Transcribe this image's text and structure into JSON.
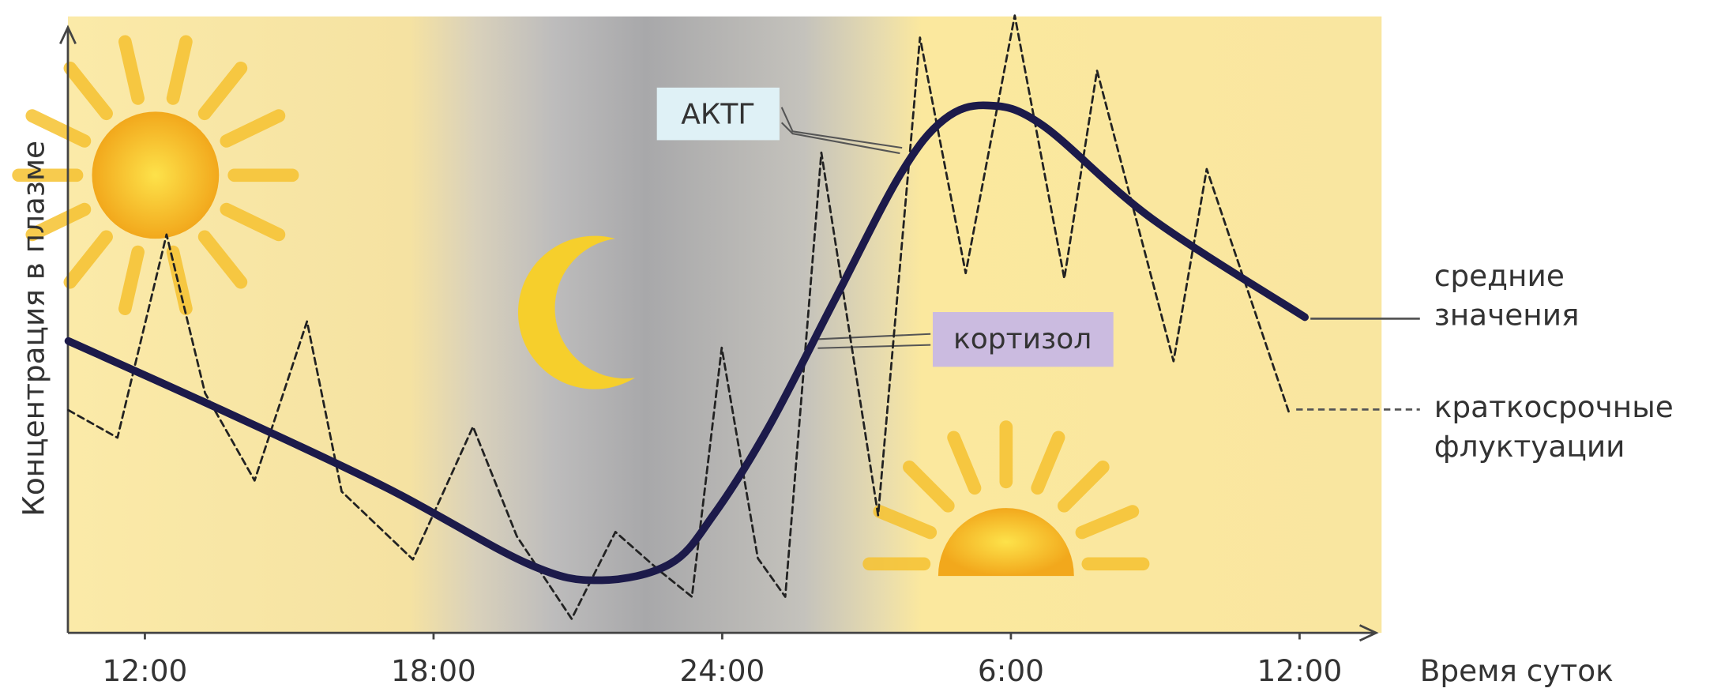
{
  "chart_data": {
    "type": "line",
    "y_label": "Концентрация в плазме",
    "x_label": "Время суток",
    "xlim": [
      10.4,
      37.5
    ],
    "ylim": [
      0,
      102
    ],
    "xticks": [
      {
        "value": 12,
        "label": "12:00"
      },
      {
        "value": 18,
        "label": "18:00"
      },
      {
        "value": 24,
        "label": "24:00"
      },
      {
        "value": 30,
        "label": "6:00"
      },
      {
        "value": 36,
        "label": "12:00"
      }
    ],
    "annotations": [
      "АКТГ",
      "кортизол"
    ],
    "series": [
      {
        "name": "средние значения",
        "color": "#1c1a4a",
        "style": "solid",
        "x": [
          10.41,
          13.6,
          17.0,
          19.96,
          21.44,
          22.92,
          23.83,
          24.97,
          26.33,
          27.7,
          28.61,
          29.52,
          30.65,
          32.93,
          36.11
        ],
        "values": [
          47.7,
          36.4,
          23.8,
          11.3,
          8.6,
          11.3,
          19.4,
          33.7,
          54.3,
          74.9,
          83.9,
          86.2,
          83.0,
          67.7,
          51.6
        ]
      },
      {
        "name": "краткосрочные флуктуации",
        "color": "#222222",
        "style": "dashed",
        "x": [
          10.41,
          11.43,
          12.45,
          13.25,
          14.28,
          15.37,
          16.09,
          17.57,
          18.82,
          19.73,
          20.87,
          21.78,
          22.69,
          23.37,
          23.99,
          24.74,
          25.31,
          26.06,
          27.24,
          28.11,
          29.06,
          30.08,
          31.11,
          31.79,
          33.38,
          34.07,
          35.78
        ],
        "values": [
          36.4,
          31.9,
          65.1,
          39.2,
          24.9,
          50.9,
          23.1,
          12.0,
          33.7,
          15.8,
          2.3,
          16.5,
          10.2,
          5.9,
          46.6,
          12.2,
          5.9,
          78.5,
          19.2,
          97.3,
          58.8,
          100.9,
          57.9,
          91.9,
          44.4,
          75.8,
          36.0
        ]
      }
    ]
  }
}
